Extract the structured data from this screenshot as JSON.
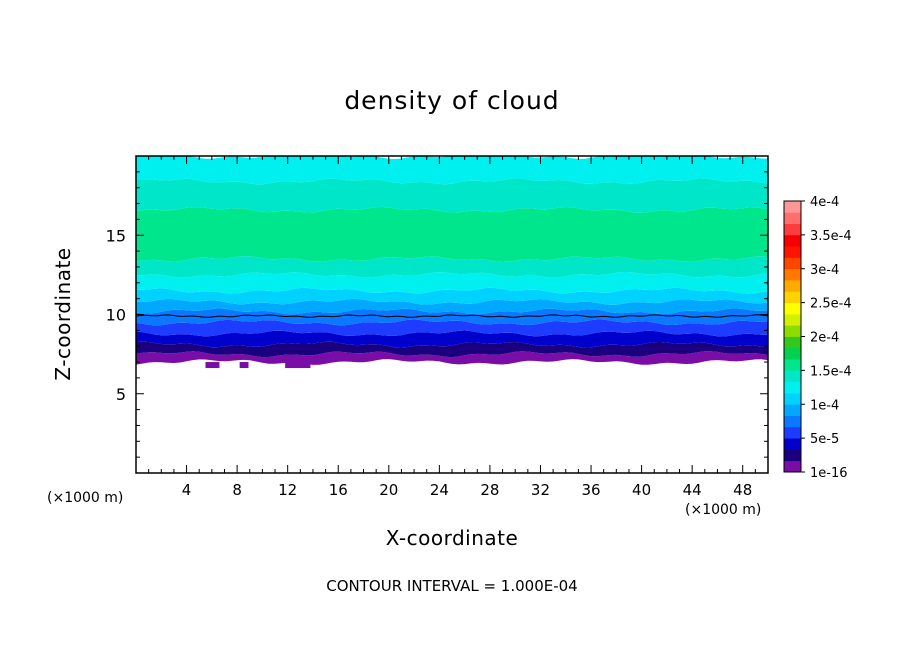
{
  "chart_data": {
    "type": "heatmap",
    "title": "density of cloud",
    "xlabel": "X-coordinate",
    "ylabel": "Z-coordinate",
    "x_unit_label": "(×1000 m)",
    "y_unit_label": "(×1000 m)",
    "xlim": [
      0,
      50
    ],
    "ylim": [
      0,
      20
    ],
    "x_ticks": [
      4,
      8,
      12,
      16,
      20,
      24,
      28,
      32,
      36,
      40,
      44,
      48
    ],
    "y_ticks": [
      5,
      10,
      15
    ],
    "contour_interval_text": "CONTOUR INTERVAL = 1.000E-04",
    "colorbar": {
      "levels": [
        "1e-16",
        "5e-5",
        "1e-4",
        "1.5e-4",
        "2e-4",
        "2.5e-4",
        "3e-4",
        "3.5e-4",
        "4e-4"
      ],
      "colors": [
        "#7a0ca8",
        "#1a007f",
        "#0000cd",
        "#1e3cff",
        "#0a78ff",
        "#00a8ff",
        "#00d2ff",
        "#00f0f0",
        "#00e6c8",
        "#00e68c",
        "#00d250",
        "#32c81e",
        "#8cdc00",
        "#d2f000",
        "#ffff00",
        "#ffd200",
        "#ffaa00",
        "#ff7800",
        "#ff4600",
        "#ff1400",
        "#f50000",
        "#ff3c3c",
        "#ff6e6e",
        "#ff9696"
      ]
    },
    "vertical_profile": [
      {
        "z_bottom": 7.0,
        "z_top": 7.5,
        "value_level": 0
      },
      {
        "z_bottom": 7.5,
        "z_top": 8.1,
        "value_level": 1
      },
      {
        "z_bottom": 8.1,
        "z_top": 8.8,
        "value_level": 2
      },
      {
        "z_bottom": 8.8,
        "z_top": 9.5,
        "value_level": 3
      },
      {
        "z_bottom": 9.5,
        "z_top": 10.2,
        "value_level": 4
      },
      {
        "z_bottom": 10.2,
        "z_top": 10.8,
        "value_level": 5
      },
      {
        "z_bottom": 10.8,
        "z_top": 11.5,
        "value_level": 6
      },
      {
        "z_bottom": 11.5,
        "z_top": 12.5,
        "value_level": 7
      },
      {
        "z_bottom": 12.5,
        "z_top": 13.5,
        "value_level": 8
      },
      {
        "z_bottom": 13.5,
        "z_top": 16.6,
        "value_level": 9
      },
      {
        "z_bottom": 16.6,
        "z_top": 18.4,
        "value_level": 8
      },
      {
        "z_bottom": 18.4,
        "z_top": 20.0,
        "value_level": 7
      }
    ],
    "contour_line_z": 9.9,
    "cloud_base_z": 7.0
  }
}
